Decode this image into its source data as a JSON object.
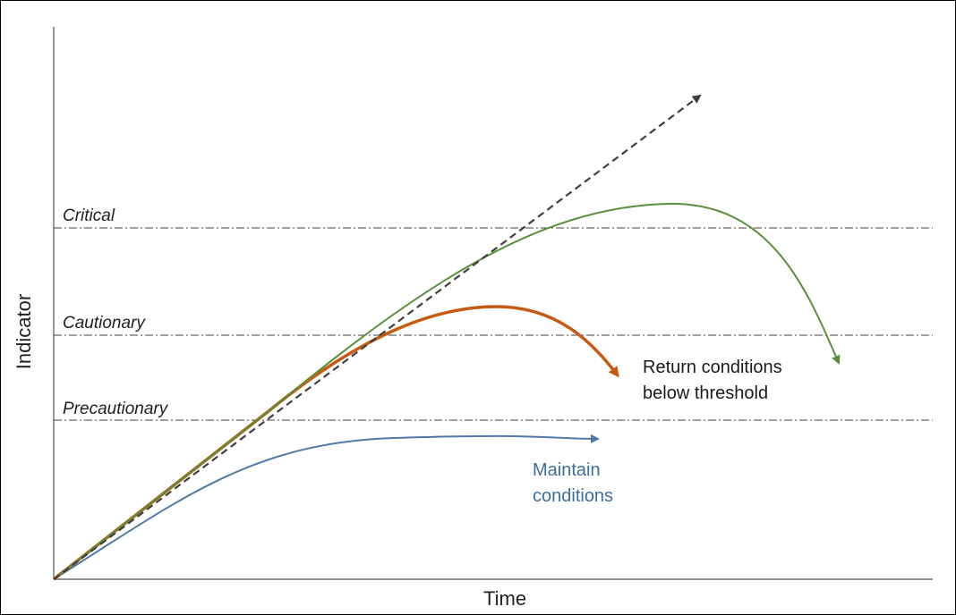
{
  "axes": {
    "x_label": "Time",
    "y_label": "Indicator"
  },
  "thresholds": [
    {
      "name": "Precautionary"
    },
    {
      "name": "Cautionary"
    },
    {
      "name": "Critical"
    }
  ],
  "annotations": {
    "maintain": {
      "line1": "Maintain",
      "line2": "conditions",
      "color": "#3e6e9e"
    },
    "return": {
      "line1": "Return conditions",
      "line2": "below threshold",
      "color": "#1a1a1a"
    }
  },
  "colors": {
    "trend": "#404040",
    "maintain_curve": "#4f7aa8",
    "cautionary_curve": "#c55a11",
    "critical_curve": "#5a8f3c",
    "threshold_line": "#404040"
  }
}
